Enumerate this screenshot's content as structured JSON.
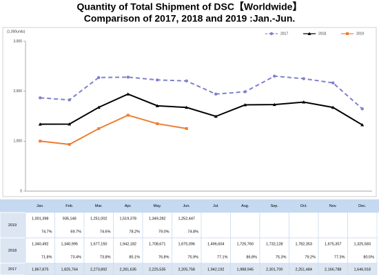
{
  "chart_data": {
    "type": "line",
    "title": "Quantity of Total Shipment of DSC【Worldwide】",
    "subtitle": "Comparison of 2017, 2018 and 2019 :Jan.-Jun.",
    "y_label": "(1,000units)",
    "categories": [
      "Jan.",
      "Feb.",
      "Mar.",
      "Apr.",
      "May.",
      "Jun.",
      "Jul.",
      "Aug.",
      "Sep.",
      "Oct.",
      "Nov.",
      "Dec."
    ],
    "ylim": [
      0,
      3000
    ],
    "yticks": [
      0,
      {
        "value": 1000,
        "label": "1,000"
      },
      {
        "value": 2000,
        "label": "2,000"
      },
      {
        "value": 3000,
        "label": "3,000"
      }
    ],
    "legend": "top-right",
    "series": [
      {
        "name": "2017",
        "color": "#7f7fcc",
        "dash": true,
        "marker": "circle",
        "values": [
          1867.875,
          1825.764,
          2273.892,
          2281.635,
          2225.535,
          2205.758,
          1942.192,
          1988.945,
          2301.7,
          2251.484,
          2166.788,
          1646.918
        ],
        "value_labels": [
          "1,867,875",
          "1,825,764",
          "2,273,892",
          "2,281,635",
          "2,225,535",
          "2,205,758",
          "1,942,192",
          "1,988,945",
          "2,301,700",
          "2,251,484",
          "2,166,788",
          "1,646,918"
        ]
      },
      {
        "name": "2018",
        "color": "#000000",
        "dash": false,
        "marker": "triangle",
        "values": [
          1340.492,
          1340.995,
          1677.15,
          1942.182,
          1708.671,
          1675.096,
          1496.604,
          1726.76,
          1732.128,
          1782.353,
          1675.357,
          1325.583
        ],
        "value_labels": [
          "1,340,492",
          "1,340,995",
          "1,677,150",
          "1,942,182",
          "1,708,671",
          "1,675,096",
          "1,496,604",
          "1,726,760",
          "1,732,128",
          "1,782,353",
          "1,675,357",
          "1,325,583"
        ],
        "ratios": [
          "71.8%",
          "73.4%",
          "73.8%",
          "85.1%",
          "76.8%",
          "75.9%",
          "77.1%",
          "86.8%",
          "75.3%",
          "79.2%",
          "77.3%",
          "80.5%"
        ]
      },
      {
        "name": "2019",
        "color": "#ee7d31",
        "dash": false,
        "marker": "square",
        "values": [
          1001.398,
          935.148,
          1251.002,
          1519.378,
          1349.282,
          1252.447,
          null,
          null,
          null,
          null,
          null,
          null
        ],
        "value_labels": [
          "1,001,398",
          "935,148",
          "1,251,002",
          "1,519,378",
          "1,349,282",
          "1,252,447",
          null,
          null,
          null,
          null,
          null,
          null
        ],
        "ratios": [
          "74.7%",
          "69.7%",
          "74.6%",
          "78.2%",
          "79.0%",
          "74.8%",
          null,
          null,
          null,
          null,
          null,
          null
        ]
      }
    ]
  }
}
